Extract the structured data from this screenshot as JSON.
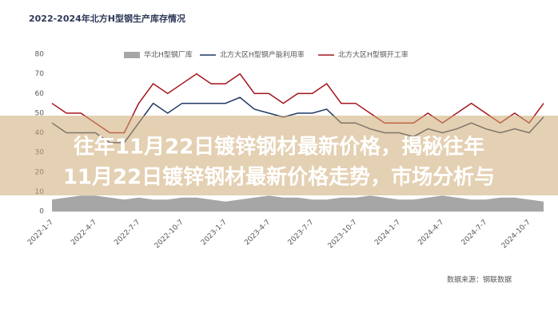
{
  "chart_data": {
    "type": "line",
    "title": "2022-2024年北方H型钢生产库存情况",
    "categories": [
      "2022-1-7",
      null,
      null,
      "2022-4-7",
      null,
      null,
      "2022-7-7",
      null,
      null,
      "2022-10-7",
      null,
      null,
      "2023-1-7",
      null,
      null,
      "2023-4-7",
      null,
      null,
      "2023-7-7",
      null,
      null,
      "2023-10-7",
      null,
      null,
      "2024-1-7",
      null,
      null,
      "2024-4-7",
      null,
      null,
      "2024-7-7",
      null,
      null,
      "2024-10-7",
      null
    ],
    "series": [
      {
        "name": "华北H型钢厂库",
        "color": "#a6a6a6",
        "kind": "area",
        "values": [
          6,
          7,
          8,
          8,
          7,
          6,
          7,
          6,
          6,
          7,
          7,
          6,
          5,
          6,
          7,
          8,
          7,
          7,
          6,
          6,
          7,
          7,
          8,
          7,
          6,
          6,
          7,
          8,
          7,
          6,
          6,
          7,
          7,
          6,
          5
        ]
      },
      {
        "name": "北方大区H型钢产能利用率",
        "color": "#1f3864",
        "kind": "line",
        "values": [
          45,
          40,
          40,
          40,
          35,
          35,
          45,
          55,
          50,
          55,
          55,
          55,
          55,
          58,
          52,
          50,
          48,
          50,
          50,
          52,
          45,
          45,
          42,
          40,
          40,
          38,
          42,
          40,
          42,
          45,
          42,
          40,
          42,
          40,
          48
        ]
      },
      {
        "name": "北方大区H型钢开工率",
        "color": "#a5141c",
        "kind": "line",
        "values": [
          55,
          50,
          50,
          45,
          40,
          40,
          55,
          65,
          60,
          65,
          70,
          65,
          65,
          70,
          60,
          60,
          55,
          60,
          60,
          65,
          55,
          55,
          50,
          45,
          45,
          45,
          50,
          45,
          50,
          55,
          50,
          45,
          50,
          45,
          55
        ]
      }
    ],
    "ylim": [
      0,
      80
    ],
    "yticks": [
      0,
      10,
      20,
      30,
      40,
      50,
      60,
      70,
      80
    ],
    "grid": false,
    "source": "数据来源：钢联数据"
  },
  "overlay": {
    "lines": [
      "往年11月22日镀锌钢材最新价格，揭秘往年",
      "11月22日镀锌钢材最新价格走势，市场分析与"
    ]
  }
}
